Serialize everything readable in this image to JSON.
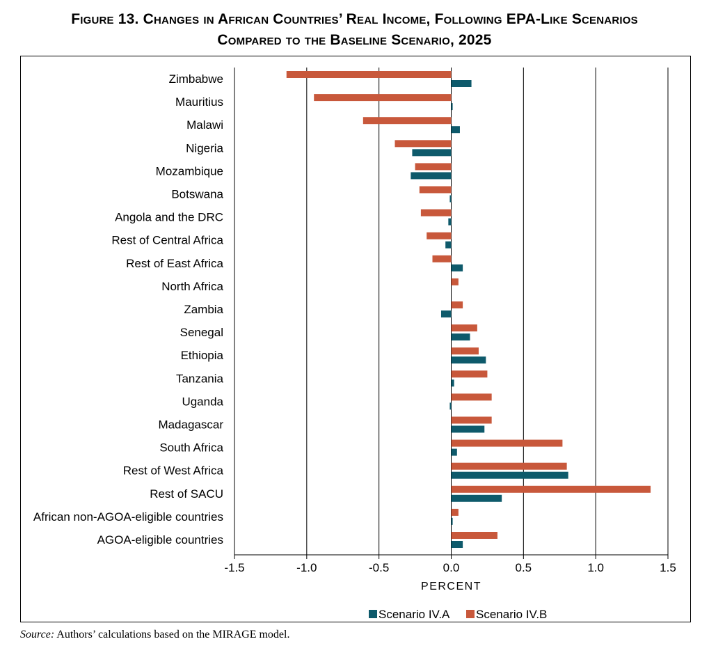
{
  "figure": {
    "title_line1": "Figure 13. Changes in African Countries’ Real Income, Following EPA-Like Scenarios",
    "title_line2": "Compared to the Baseline Scenario, 2025",
    "source_label": "Source:",
    "source_text": " Authors’ calculations based on the MIRAGE model."
  },
  "chart_data": {
    "type": "bar",
    "orientation": "horizontal",
    "xlabel": "PERCENT",
    "xlim": [
      -1.5,
      1.5
    ],
    "xticks": [
      -1.5,
      -1.0,
      -0.5,
      0.0,
      0.5,
      1.0,
      1.5
    ],
    "xtick_labels": [
      "-1.5",
      "-1.0",
      "-0.5",
      "0.0",
      "0.5",
      "1.0",
      "1.5"
    ],
    "grid": "vertical",
    "legend_position": "bottom",
    "categories": [
      "Zimbabwe",
      "Mauritius",
      "Malawi",
      "Nigeria",
      "Mozambique",
      "Botswana",
      "Angola and the DRC",
      "Rest of Central Africa",
      "Rest of East Africa",
      "North Africa",
      "Zambia",
      "Senegal",
      "Ethiopia",
      "Tanzania",
      "Uganda",
      "Madagascar",
      "South Africa",
      "Rest of West Africa",
      "Rest of SACU",
      "African non-AGOA-eligible countries",
      "AGOA-eligible countries"
    ],
    "series": [
      {
        "name": "Scenario IV.A",
        "color": "#0e5a6b",
        "values": [
          0.14,
          0.01,
          0.06,
          -0.27,
          -0.28,
          -0.01,
          -0.02,
          -0.04,
          0.08,
          0.0,
          -0.07,
          0.13,
          0.24,
          0.02,
          -0.01,
          0.23,
          0.04,
          0.81,
          0.35,
          0.01,
          0.08
        ]
      },
      {
        "name": "Scenario IV.B",
        "color": "#c8583b",
        "values": [
          -1.14,
          -0.95,
          -0.61,
          -0.39,
          -0.25,
          -0.22,
          -0.21,
          -0.17,
          -0.13,
          0.05,
          0.08,
          0.18,
          0.19,
          0.25,
          0.28,
          0.28,
          0.77,
          0.8,
          1.38,
          0.05,
          0.32
        ]
      }
    ]
  }
}
